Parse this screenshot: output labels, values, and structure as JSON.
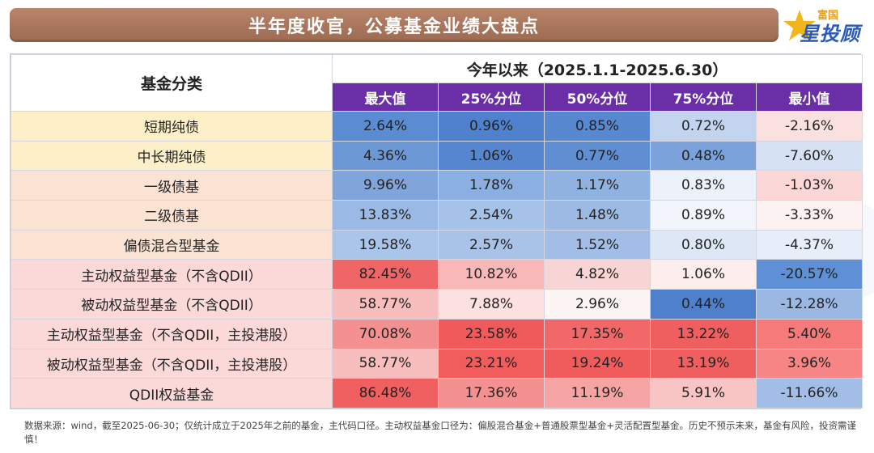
{
  "header": {
    "title": "半年度收官，公募基金业绩大盘点",
    "logo_top": "富国",
    "logo_main": "星投顾"
  },
  "table": {
    "category_header": "基金分类",
    "period_header": "今年以来（2025.1.1-2025.6.30）",
    "columns": [
      "最大值",
      "25%分位",
      "50%分位",
      "75%分位",
      "最小值"
    ],
    "rows": [
      {
        "name": "短期纯债",
        "group": "bond",
        "values": [
          "2.64%",
          "0.96%",
          "0.85%",
          "0.72%",
          "-2.16%"
        ]
      },
      {
        "name": "中长期纯债",
        "group": "bond",
        "values": [
          "4.36%",
          "1.06%",
          "0.77%",
          "0.48%",
          "-7.60%"
        ]
      },
      {
        "name": "一级债基",
        "group": "mixed",
        "values": [
          "9.96%",
          "1.78%",
          "1.17%",
          "0.83%",
          "-1.03%"
        ]
      },
      {
        "name": "二级债基",
        "group": "mixed",
        "values": [
          "13.83%",
          "2.54%",
          "1.48%",
          "0.89%",
          "-3.33%"
        ]
      },
      {
        "name": "偏债混合型基金",
        "group": "mixed",
        "values": [
          "19.58%",
          "2.57%",
          "1.52%",
          "0.80%",
          "-4.37%"
        ]
      },
      {
        "name": "主动权益型基金（不含QDII）",
        "group": "equity",
        "values": [
          "82.45%",
          "10.82%",
          "4.82%",
          "1.06%",
          "-20.57%"
        ]
      },
      {
        "name": "被动权益型基金（不含QDII）",
        "group": "equity",
        "values": [
          "58.77%",
          "7.88%",
          "2.96%",
          "0.44%",
          "-12.28%"
        ]
      },
      {
        "name": "主动权益型基金（不含QDII，主投港股）",
        "group": "equity",
        "values": [
          "70.08%",
          "23.58%",
          "17.35%",
          "13.22%",
          "5.40%"
        ]
      },
      {
        "name": "被动权益型基金（不含QDII，主投港股）",
        "group": "equity",
        "values": [
          "58.77%",
          "23.21%",
          "19.24%",
          "13.19%",
          "3.96%"
        ]
      },
      {
        "name": "QDII权益基金",
        "group": "equity",
        "values": [
          "86.48%",
          "17.36%",
          "11.19%",
          "5.91%",
          "-11.66%"
        ]
      }
    ],
    "cell_colors": [
      [
        "#5b8bd0",
        "#4f81cc",
        "#5788d0",
        "#c3d4ef",
        "#fbe0e0"
      ],
      [
        "#6d98d6",
        "#5586cf",
        "#5f8ed3",
        "#7ba2db",
        "#d6e2f4"
      ],
      [
        "#7fa5db",
        "#8bafe0",
        "#8fb2e1",
        "#ecf1fa",
        "#fbd7d7"
      ],
      [
        "#9ab9e4",
        "#a7c2e8",
        "#9dbae4",
        "#f2f5fc",
        "#fcf2f2"
      ],
      [
        "#aac5ea",
        "#a9c3e8",
        "#a3bee6",
        "#dde7f6",
        "#e8eef9"
      ],
      [
        "#f06666",
        "#f8b8b8",
        "#f8d4d4",
        "#fdeeee",
        "#5f8fd4"
      ],
      [
        "#f8bdbd",
        "#fde0e0",
        "#fdf4f4",
        "#4f80cc",
        "#9bb8e3"
      ],
      [
        "#f59090",
        "#f15a5a",
        "#f26767",
        "#f05f5f",
        "#f77a7a"
      ],
      [
        "#f8bdbd",
        "#f15d5d",
        "#f05b5b",
        "#f05f5f",
        "#f78585"
      ],
      [
        "#f06060",
        "#f59090",
        "#f6a3a3",
        "#f9c4c4",
        "#a3bee6"
      ]
    ]
  },
  "footnote": "数据来源：wind，截至2025-06-30；仅统计成立于2025年之前的基金，主代码口径。主动权益基金口径为：偏股混合基金+普通股票型基金+灵活配置型基金。历史不预示未来，基金有风险，投资需谨慎！"
}
